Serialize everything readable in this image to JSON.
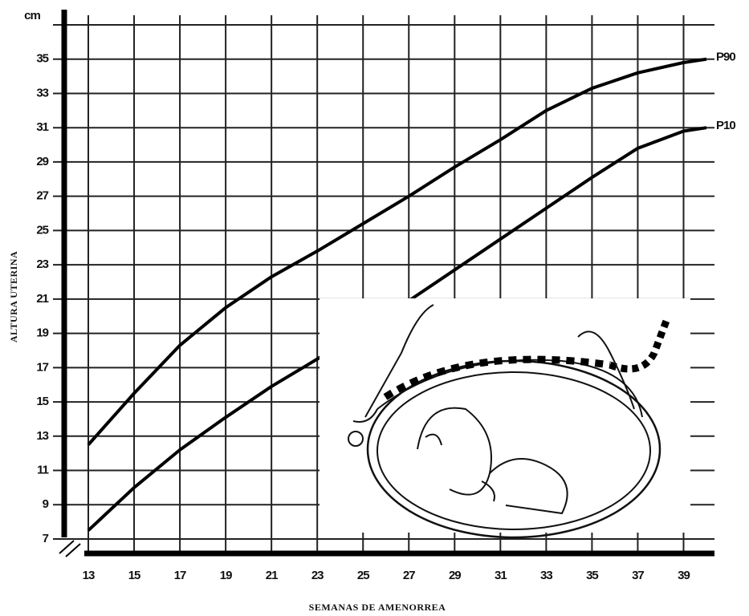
{
  "chart_data": {
    "type": "line",
    "x_label": "SEMANAS DE AMENORREA",
    "y_label": "ALTURA UTERINA",
    "y_unit": "cm",
    "x": [
      13,
      15,
      17,
      19,
      21,
      23,
      25,
      27,
      29,
      31,
      33,
      35,
      37,
      39,
      40
    ],
    "series": [
      {
        "name": "P90",
        "color": "#000000",
        "values": [
          12.5,
          15.5,
          18.3,
          20.5,
          22.3,
          23.8,
          25.4,
          27,
          28.7,
          30.3,
          32,
          33.3,
          34.2,
          34.8,
          35
        ]
      },
      {
        "name": "P10",
        "color": "#000000",
        "values": [
          7.5,
          10,
          12.2,
          14.1,
          15.9,
          17.5,
          19.2,
          20.9,
          22.7,
          24.5,
          26.3,
          28.1,
          29.8,
          30.8,
          31
        ]
      }
    ],
    "xlim": [
      13,
      40
    ],
    "ylim": [
      7,
      37
    ],
    "xticks": [
      13,
      15,
      17,
      19,
      21,
      23,
      25,
      27,
      29,
      31,
      33,
      35,
      37,
      39
    ],
    "yticks": [
      7,
      9,
      11,
      13,
      15,
      17,
      19,
      21,
      23,
      25,
      27,
      29,
      31,
      33,
      35
    ],
    "grid": true
  }
}
